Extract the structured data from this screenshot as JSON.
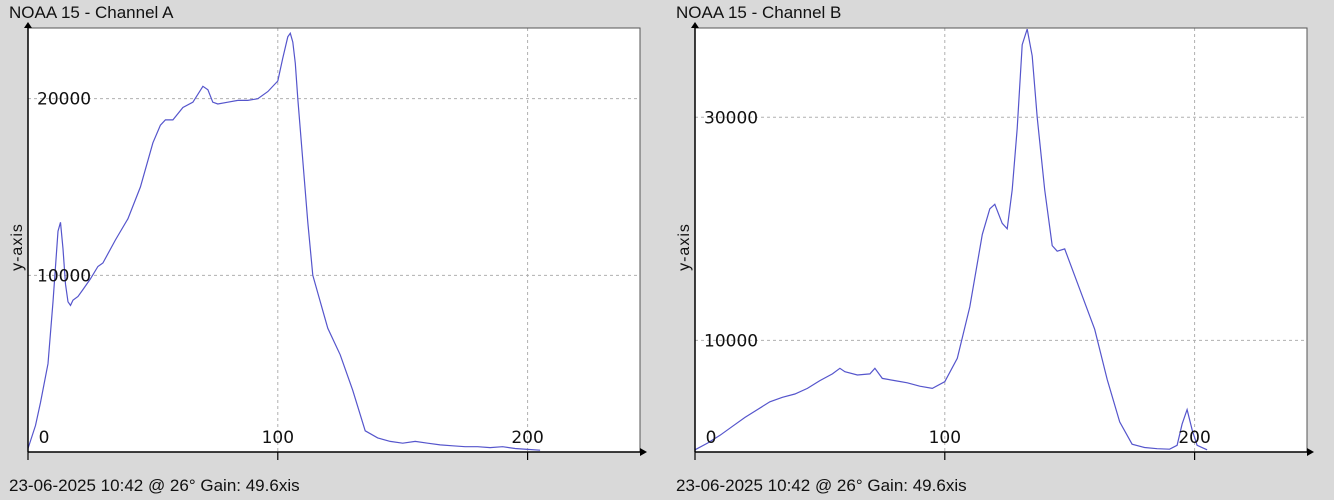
{
  "chart_data": [
    {
      "type": "line",
      "title": "NOAA 15 - Channel A",
      "ylabel": "y-axis",
      "footer": "23-06-2025 10:42 @ 26° Gain: 49.6",
      "footer_suffix": "xis",
      "xlim": [
        0,
        245
      ],
      "ylim": [
        0,
        24000
      ],
      "x_ticks": [
        0,
        100,
        200
      ],
      "y_ticks": [
        10000,
        20000
      ],
      "grid": true,
      "line_color": "#5555cc",
      "series": [
        {
          "x": [
            0,
            3,
            5,
            8,
            10,
            11,
            12,
            13,
            14,
            15,
            16,
            17,
            18,
            20,
            22,
            25,
            28,
            30,
            35,
            40,
            45,
            50,
            53,
            55,
            58,
            62,
            66,
            70,
            72,
            74,
            76,
            80,
            84,
            88,
            92,
            96,
            100,
            102,
            104,
            105,
            106,
            107,
            108,
            110,
            112,
            114,
            116,
            118,
            120,
            125,
            130,
            135,
            140,
            145,
            150,
            155,
            160,
            165,
            170,
            175,
            180,
            185,
            190,
            195,
            200,
            205
          ],
          "y": [
            200,
            1500,
            2800,
            5000,
            8500,
            10500,
            12500,
            13000,
            11500,
            9500,
            8500,
            8300,
            8600,
            8800,
            9200,
            9800,
            10500,
            10700,
            12000,
            13200,
            15000,
            17500,
            18500,
            18800,
            18800,
            19500,
            19800,
            20700,
            20500,
            19800,
            19700,
            19800,
            19900,
            19900,
            20000,
            20400,
            21000,
            22300,
            23500,
            23700,
            23200,
            22000,
            20000,
            16500,
            13000,
            10000,
            9000,
            8000,
            7000,
            5500,
            3500,
            1200,
            800,
            600,
            500,
            600,
            500,
            400,
            350,
            300,
            300,
            250,
            300,
            200,
            150,
            100
          ]
        }
      ]
    },
    {
      "type": "line",
      "title": "NOAA 15 - Channel B",
      "ylabel": "y-axis",
      "footer": "23-06-2025 10:42 @ 26° Gain: 49.6",
      "footer_suffix": "xis",
      "xlim": [
        0,
        245
      ],
      "ylim": [
        0,
        38000
      ],
      "x_ticks": [
        0,
        100,
        200
      ],
      "y_ticks": [
        10000,
        30000
      ],
      "grid": true,
      "line_color": "#5555cc",
      "series": [
        {
          "x": [
            0,
            5,
            10,
            15,
            20,
            25,
            30,
            35,
            40,
            45,
            50,
            55,
            58,
            60,
            65,
            70,
            72,
            75,
            80,
            85,
            90,
            95,
            100,
            105,
            110,
            115,
            118,
            120,
            123,
            125,
            127,
            129,
            131,
            133,
            135,
            137,
            140,
            143,
            145,
            148,
            150,
            155,
            160,
            165,
            170,
            175,
            180,
            185,
            190,
            193,
            195,
            197,
            199,
            201,
            205
          ],
          "y": [
            200,
            800,
            1500,
            2300,
            3100,
            3800,
            4500,
            4900,
            5200,
            5700,
            6400,
            7000,
            7500,
            7200,
            6900,
            7000,
            7500,
            6600,
            6400,
            6200,
            5900,
            5700,
            6300,
            8400,
            13000,
            19500,
            21800,
            22200,
            20500,
            20000,
            23500,
            29000,
            36500,
            37900,
            35500,
            30000,
            23500,
            18500,
            18000,
            18200,
            17000,
            14000,
            11000,
            6500,
            2700,
            700,
            400,
            300,
            250,
            600,
            2500,
            3800,
            2000,
            600,
            200
          ]
        }
      ]
    }
  ]
}
